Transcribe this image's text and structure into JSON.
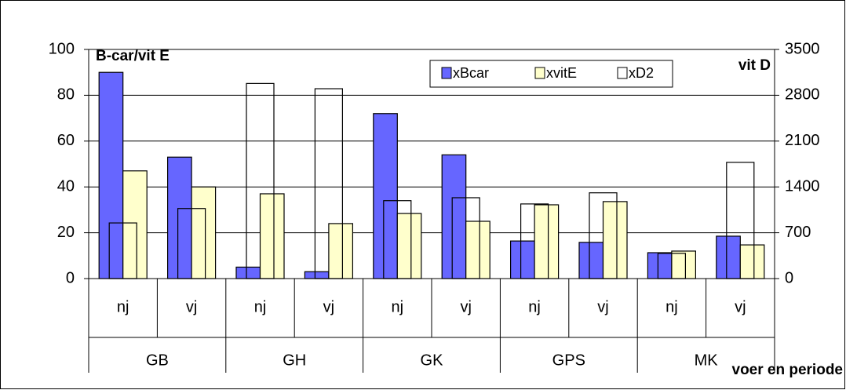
{
  "chart_data": {
    "type": "bar",
    "y_label": "B-car/vit E",
    "y2_label": "vit D",
    "x_label": "voer en periode",
    "categories": [
      "nj",
      "vj",
      "nj",
      "vj",
      "nj",
      "vj",
      "nj",
      "vj",
      "nj",
      "vj"
    ],
    "groups": [
      "GB",
      "GH",
      "GK",
      "GPS",
      "MK"
    ],
    "series": [
      {
        "name": "xBcar",
        "color": "#6666ff",
        "values": [
          90,
          53,
          5,
          3,
          72,
          54,
          16.4,
          15.8,
          11.3,
          18.5
        ]
      },
      {
        "name": "xvitE",
        "color": "#ffffcc",
        "values": [
          47,
          40,
          37,
          24,
          28.4,
          25,
          32.2,
          33.6,
          12,
          14.7
        ]
      },
      {
        "name": "xD2",
        "color": "#ffffff",
        "axis": "y2",
        "values": [
          850,
          1070,
          2980,
          2900,
          1190,
          1235,
          1140,
          1310,
          385,
          1775
        ]
      }
    ],
    "ylim": [
      0,
      100
    ],
    "yticks": [
      0,
      20,
      40,
      60,
      80,
      100
    ],
    "y2lim": [
      0,
      3500
    ],
    "y2ticks": [
      0,
      700,
      1400,
      2100,
      2800,
      3500
    ],
    "grid": true
  }
}
